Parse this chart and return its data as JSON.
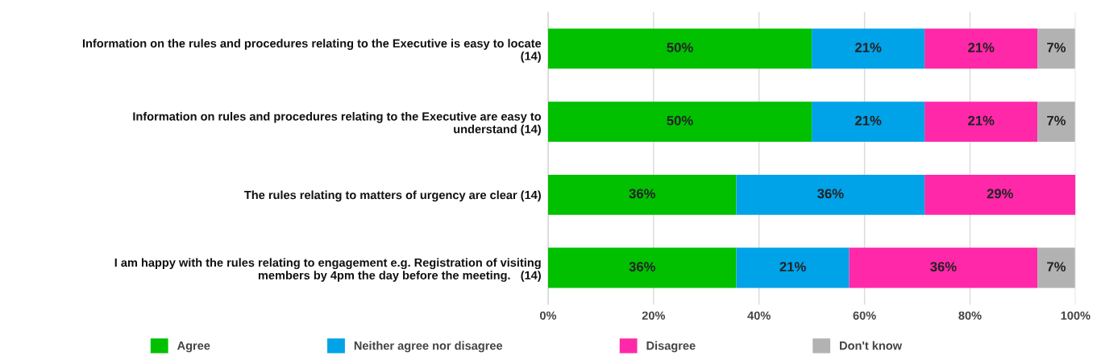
{
  "chart_data": {
    "type": "bar",
    "orientation": "horizontal",
    "stacked": true,
    "categories": [
      "Information on the rules and procedures relating to the Executive is easy to locate\n(14)",
      "Information on rules and procedures relating to the Executive are easy to\nunderstand (14)",
      "The rules relating to matters of urgency are clear (14)",
      "I am happy with the rules relating to engagement e.g. Registration of visiting\nmembers by 4pm the day before the meeting.   (14)"
    ],
    "series": [
      {
        "name": "Agree",
        "color": "#00c000",
        "values": [
          50,
          50,
          35.7,
          35.7
        ],
        "value_labels": [
          "50%",
          "50%",
          "36%",
          "36%"
        ]
      },
      {
        "name": "Neither agree nor disagree",
        "color": "#00a2e8",
        "values": [
          21.4,
          21.4,
          35.7,
          21.4
        ],
        "value_labels": [
          "21%",
          "21%",
          "36%",
          "21%"
        ]
      },
      {
        "name": "Disagree",
        "color": "#ff28a8",
        "values": [
          21.4,
          21.4,
          28.6,
          35.7
        ],
        "value_labels": [
          "21%",
          "21%",
          "29%",
          "36%"
        ]
      },
      {
        "name": "Don't know",
        "color": "#b2b2b2",
        "values": [
          7.1,
          7.1,
          null,
          7.1
        ],
        "value_labels": [
          "7%",
          "7%",
          null,
          "7%"
        ]
      }
    ],
    "xlim": [
      0,
      100
    ],
    "xticks": [
      {
        "value": 0,
        "label": "0%"
      },
      {
        "value": 20,
        "label": "20%"
      },
      {
        "value": 40,
        "label": "40%"
      },
      {
        "value": 60,
        "label": "60%"
      },
      {
        "value": 80,
        "label": "80%"
      },
      {
        "value": 100,
        "label": "100%"
      }
    ],
    "grid": "x",
    "legend": "bottom"
  }
}
